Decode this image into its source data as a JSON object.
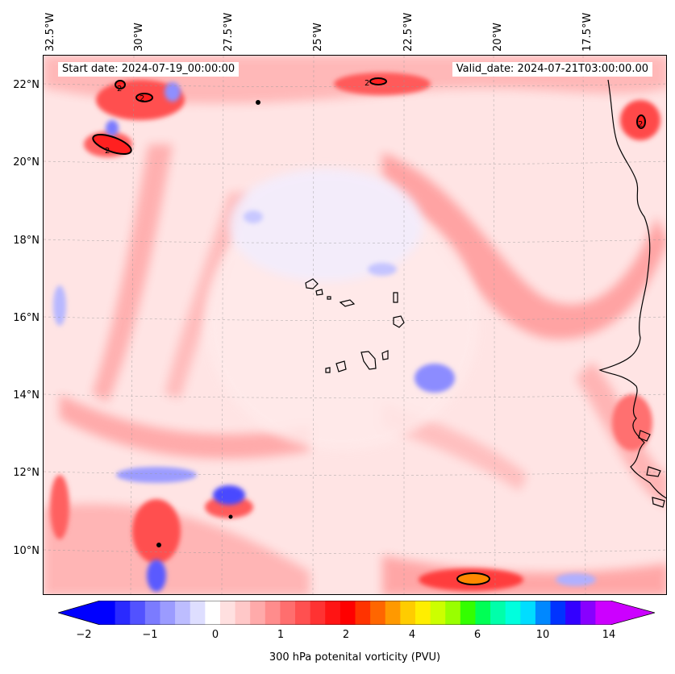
{
  "map": {
    "start_date": "Start date: 2024-07-19_00:00:00",
    "valid_date": "Valid_date: 2024-07-21T03:00:00.00",
    "longitude_labels": [
      "32.5°W",
      "30°W",
      "27.5°W",
      "25°W",
      "22.5°W",
      "20°W",
      "17.5°W"
    ],
    "latitude_labels": [
      "22°N",
      "20°N",
      "18°N",
      "16°N",
      "14°N",
      "12°N",
      "10°N"
    ],
    "contour_label": "2",
    "colors": {
      "land_outline": "#000000",
      "background_low": "#ffe6e6",
      "negative": "#3030ff",
      "peak": "#ff6600"
    }
  },
  "colorbar": {
    "label": "300 hPa potenital vorticity (PVU)",
    "ticks": [
      "−2",
      "−1",
      "0",
      "1",
      "2",
      "4",
      "6",
      "10",
      "14"
    ],
    "colors": [
      "#0000ff",
      "#2a2aff",
      "#5252ff",
      "#7b7bff",
      "#9b9bff",
      "#bdbdff",
      "#dedeff",
      "#ffffff",
      "#ffe0e0",
      "#ffc8c8",
      "#ffaaaa",
      "#ff8c8c",
      "#ff6e6e",
      "#ff5050",
      "#ff3232",
      "#ff1414",
      "#ff0000",
      "#ff3300",
      "#ff6600",
      "#ff9900",
      "#ffcc00",
      "#ffee00",
      "#ccff00",
      "#99ff00",
      "#33ff00",
      "#00ff55",
      "#00ffaa",
      "#00ffdd",
      "#00ddff",
      "#0088ff",
      "#0033ff",
      "#3300ff",
      "#8800ff",
      "#cc00ff"
    ],
    "left_extend_color": "#0000ff",
    "right_extend_color": "#cc00ff"
  }
}
